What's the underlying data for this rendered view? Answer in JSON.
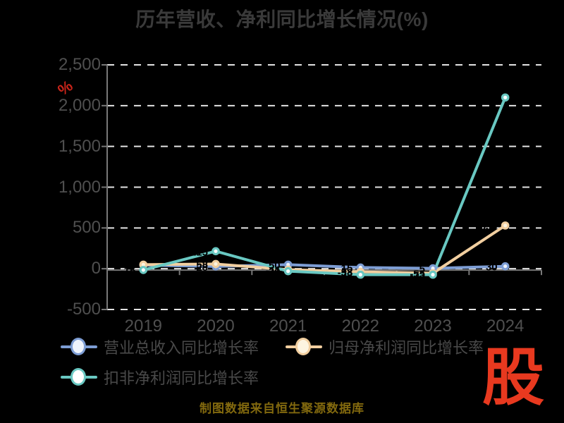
{
  "chart_data": {
    "type": "line",
    "title": "历年营收、净利同比增长情况(%)",
    "y_unit": "%",
    "categories": [
      "2019",
      "2020",
      "2021",
      "2022",
      "2023",
      "2024"
    ],
    "series": [
      {
        "id": "revenue-growth",
        "name": "营业总收入同比增长率",
        "color": "#7d9dd4",
        "marker_fill": "#eef3fc",
        "values": [
          45,
          28,
          50,
          15,
          5,
          30
        ]
      },
      {
        "id": "net-profit-growth",
        "name": "归母净利润同比增长率",
        "color": "#f2cfa0",
        "marker_fill": "#fdf4e0",
        "values": [
          50,
          58,
          -11,
          -38,
          -55,
          530
        ]
      },
      {
        "id": "non-gaap-profit-growth",
        "name": "扣非净利润同比增长率",
        "color": "#69c8c2",
        "marker_fill": "#ffffff",
        "values": [
          -15,
          215,
          -30,
          -73,
          -73,
          2100
        ]
      }
    ],
    "ylim": [
      -500,
      2500
    ],
    "yticks": [
      2500,
      2000,
      1500,
      1000,
      500,
      0,
      -500
    ],
    "ytick_labels": [
      "2,500",
      "2,000",
      "1,500",
      "1,000",
      "500",
      "0",
      "-500"
    ],
    "grid": "horizontal-dashed",
    "legend_position": "bottom-left"
  },
  "source_note": "制图数据来自恒生聚源数据库",
  "logo_text": "股",
  "colors": {
    "background": "#000000",
    "title": "#3a3a3a",
    "axis_label": "#4f4f4f",
    "legend_text": "#494949",
    "grid_line": "#e3e3e3",
    "axis_line": "#787878",
    "unit_red": "#c9241a",
    "logo_red": "#e8391f",
    "source_note": "#82690e",
    "point_label": "#000000"
  }
}
